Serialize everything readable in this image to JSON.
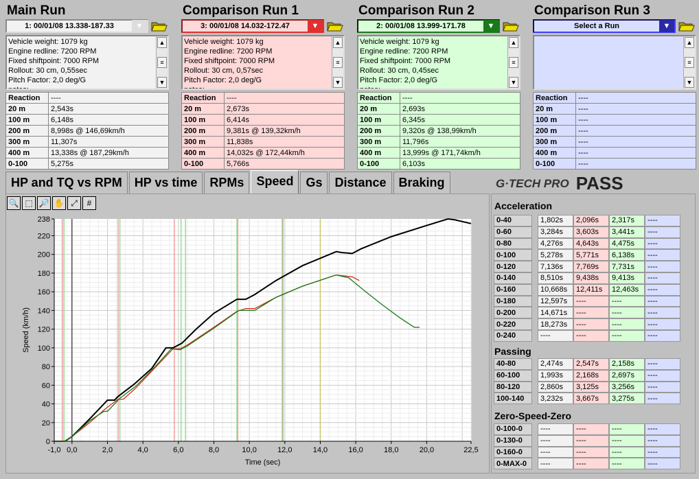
{
  "colors": {
    "main": "#f2f2f2",
    "run1": "#ffd8d8",
    "run2": "#d8ffd8",
    "run3": "#d8deff",
    "run1_accent": "#e03030",
    "run2_accent": "#1a7a1a",
    "run3_accent": "#2a2aa8"
  },
  "runs": [
    {
      "title": "Main Run",
      "selected": "1:   00/01/08 13.338-187.33",
      "info": [
        "Vehicle weight: 1079 kg",
        "Engine redline: 7200 RPM",
        "Fixed shiftpoint: 7000 RPM",
        "Rollout: 30 cm, 0,55sec",
        "Pitch Factor: 2,0 deg/G",
        "notes:"
      ],
      "results": [
        [
          "Reaction",
          "----"
        ],
        [
          "20 m",
          "2,543s"
        ],
        [
          "100 m",
          "6,148s"
        ],
        [
          "200 m",
          "8,998s @ 146,69km/h"
        ],
        [
          "300 m",
          "11,307s"
        ],
        [
          "400 m",
          "13,338s @ 187,29km/h"
        ],
        [
          "0-100",
          "5,275s"
        ]
      ]
    },
    {
      "title": "Comparison Run 1",
      "selected": "3:   00/01/08 14.032-172.47",
      "info": [
        "Vehicle weight: 1079 kg",
        "Engine redline: 7200 RPM",
        "Fixed shiftpoint: 7000 RPM",
        "Rollout: 30 cm, 0,57sec",
        "Pitch Factor: 2,0 deg/G",
        "notes:"
      ],
      "results": [
        [
          "Reaction",
          "----"
        ],
        [
          "20 m",
          "2,673s"
        ],
        [
          "100 m",
          "6,414s"
        ],
        [
          "200 m",
          "9,381s @ 139,32km/h"
        ],
        [
          "300 m",
          "11,838s"
        ],
        [
          "400 m",
          "14,032s @ 172,44km/h"
        ],
        [
          "0-100",
          "5,766s"
        ]
      ]
    },
    {
      "title": "Comparison Run 2",
      "selected": "2:   00/01/08 13.999-171.78",
      "info": [
        "Vehicle weight: 1079 kg",
        "Engine redline: 7200 RPM",
        "Fixed shiftpoint: 7000 RPM",
        "Rollout: 30 cm, 0,45sec",
        "Pitch Factor: 2,0 deg/G",
        "notes:"
      ],
      "results": [
        [
          "Reaction",
          "----"
        ],
        [
          "20 m",
          "2,693s"
        ],
        [
          "100 m",
          "6,345s"
        ],
        [
          "200 m",
          "9,320s @ 138,99km/h"
        ],
        [
          "300 m",
          "11,796s"
        ],
        [
          "400 m",
          "13,999s @ 171,74km/h"
        ],
        [
          "0-100",
          "6,103s"
        ]
      ]
    },
    {
      "title": "Comparison Run 3",
      "selected": "Select a Run",
      "info": [],
      "results": [
        [
          "Reaction",
          "----"
        ],
        [
          "20 m",
          "----"
        ],
        [
          "100 m",
          "----"
        ],
        [
          "200 m",
          "----"
        ],
        [
          "300 m",
          "----"
        ],
        [
          "400 m",
          "----"
        ],
        [
          "0-100",
          "----"
        ]
      ]
    }
  ],
  "tabs": [
    "HP and TQ vs RPM",
    "HP vs time",
    "RPMs",
    "Speed",
    "Gs",
    "Distance",
    "Braking"
  ],
  "active_tab": "Speed",
  "logo": {
    "brand": "GTECH PRO",
    "product": "PASS"
  },
  "tools": [
    {
      "icon": "zoom-in-icon",
      "glyph": "🔍"
    },
    {
      "icon": "zoom-rect-icon",
      "glyph": "⬚"
    },
    {
      "icon": "zoom-out-icon",
      "glyph": "🔎"
    },
    {
      "icon": "pan-hand-icon",
      "glyph": "✋"
    },
    {
      "icon": "fit-icon",
      "glyph": "⤢"
    },
    {
      "icon": "grid-icon",
      "glyph": "#"
    }
  ],
  "acceleration": {
    "title": "Acceleration",
    "rows": [
      [
        "0-40",
        "1,802s",
        "2,096s",
        "2,317s",
        "----"
      ],
      [
        "0-60",
        "3,284s",
        "3,603s",
        "3,441s",
        "----"
      ],
      [
        "0-80",
        "4,276s",
        "4,643s",
        "4,475s",
        "----"
      ],
      [
        "0-100",
        "5,278s",
        "5,771s",
        "6,138s",
        "----"
      ],
      [
        "0-120",
        "7,136s",
        "7,769s",
        "7,731s",
        "----"
      ],
      [
        "0-140",
        "8,510s",
        "9,438s",
        "9,413s",
        "----"
      ],
      [
        "0-160",
        "10,668s",
        "12,411s",
        "12,463s",
        "----"
      ],
      [
        "0-180",
        "12,597s",
        "----",
        "----",
        "----"
      ],
      [
        "0-200",
        "14,671s",
        "----",
        "----",
        "----"
      ],
      [
        "0-220",
        "18,273s",
        "----",
        "----",
        "----"
      ],
      [
        "0-240",
        "----",
        "----",
        "----",
        "----"
      ]
    ]
  },
  "passing": {
    "title": "Passing",
    "rows": [
      [
        "40-80",
        "2,474s",
        "2,547s",
        "2,158s",
        "----"
      ],
      [
        "60-100",
        "1,993s",
        "2,168s",
        "2,697s",
        "----"
      ],
      [
        "80-120",
        "2,860s",
        "3,125s",
        "3,256s",
        "----"
      ],
      [
        "100-140",
        "3,232s",
        "3,667s",
        "3,275s",
        "----"
      ]
    ]
  },
  "zsz": {
    "title": "Zero-Speed-Zero",
    "rows": [
      [
        "0-100-0",
        "----",
        "----",
        "----",
        "----"
      ],
      [
        "0-130-0",
        "----",
        "----",
        "----",
        "----"
      ],
      [
        "0-160-0",
        "----",
        "----",
        "----",
        "----"
      ],
      [
        "0-MAX-0",
        "----",
        "----",
        "----",
        "----"
      ]
    ]
  },
  "chart_data": {
    "type": "line",
    "xlabel": "Time (sec)",
    "ylabel": "Speed (km/h)",
    "xlim": [
      -1,
      22.5
    ],
    "ylim": [
      0,
      238
    ],
    "grid": true,
    "xticks": [
      "-1,0",
      "0,0",
      "2,0",
      "4,0",
      "6,0",
      "8,0",
      "10,0",
      "12,0",
      "14,0",
      "16,0",
      "18,0",
      "20,0",
      "22,5"
    ],
    "xtick_values": [
      -1,
      0,
      2,
      4,
      6,
      8,
      10,
      12,
      14,
      16,
      18,
      20,
      22.5
    ],
    "yticks": [
      0,
      20,
      40,
      60,
      80,
      100,
      120,
      140,
      160,
      180,
      200,
      220,
      238
    ],
    "series": [
      {
        "color": "#000000",
        "points": [
          [
            -1,
            0
          ],
          [
            -0.4,
            0
          ],
          [
            0,
            5
          ],
          [
            1,
            24
          ],
          [
            1.7,
            38
          ],
          [
            2,
            44
          ],
          [
            2.4,
            44
          ],
          [
            2.6,
            48
          ],
          [
            3.5,
            61
          ],
          [
            4.5,
            78
          ],
          [
            5.3,
            100
          ],
          [
            5.7,
            100
          ],
          [
            6.2,
            105
          ],
          [
            7,
            120
          ],
          [
            8,
            137
          ],
          [
            9.3,
            152
          ],
          [
            9.8,
            152
          ],
          [
            10.3,
            157
          ],
          [
            11.5,
            172
          ],
          [
            13,
            188
          ],
          [
            14.9,
            203
          ],
          [
            15.2,
            202
          ],
          [
            15.8,
            201
          ],
          [
            16.3,
            206
          ],
          [
            18,
            219
          ],
          [
            20,
            231
          ],
          [
            21.2,
            238
          ],
          [
            21.6,
            237
          ],
          [
            22.5,
            233
          ]
        ]
      },
      {
        "color": "#d03020",
        "points": [
          [
            -1,
            0
          ],
          [
            -0.4,
            0
          ],
          [
            0,
            5
          ],
          [
            1,
            20
          ],
          [
            1.9,
            35
          ],
          [
            2.6,
            45
          ],
          [
            2.9,
            45
          ],
          [
            3.6,
            57
          ],
          [
            4.7,
            79
          ],
          [
            5.7,
            99
          ],
          [
            6.1,
            99
          ],
          [
            6.5,
            103
          ],
          [
            8,
            122
          ],
          [
            9.3,
            139
          ],
          [
            9.8,
            142
          ],
          [
            10.3,
            142
          ],
          [
            11.5,
            154
          ],
          [
            13,
            166
          ],
          [
            14.9,
            178
          ],
          [
            15.8,
            176
          ],
          [
            16.2,
            172
          ]
        ]
      },
      {
        "color": "#1a7a1a",
        "points": [
          [
            -1,
            0
          ],
          [
            -0.4,
            0
          ],
          [
            0,
            5
          ],
          [
            1,
            22
          ],
          [
            1.8,
            32
          ],
          [
            2,
            32
          ],
          [
            2.7,
            46
          ],
          [
            3.6,
            59
          ],
          [
            4.6,
            78
          ],
          [
            5.6,
            99
          ],
          [
            6.1,
            98
          ],
          [
            6.5,
            102
          ],
          [
            8,
            121
          ],
          [
            9.4,
            140
          ],
          [
            9.8,
            140
          ],
          [
            10.3,
            140
          ],
          [
            11.5,
            154
          ],
          [
            13,
            166
          ],
          [
            14.9,
            178
          ],
          [
            15.6,
            175
          ],
          [
            16.5,
            161
          ],
          [
            17.5,
            146
          ],
          [
            18.5,
            132
          ],
          [
            19.3,
            122
          ],
          [
            19.6,
            122
          ]
        ]
      }
    ],
    "markers": [
      {
        "color": "#f0a0a0",
        "x": [
          -0.55,
          2.6,
          5.77,
          9.35,
          11.9
        ]
      },
      {
        "color": "#90e090",
        "x": [
          -0.45,
          2.7,
          6.15,
          6.4,
          9.3,
          11.85
        ]
      },
      {
        "color": "#c8c870",
        "x": [
          14.0
        ]
      }
    ]
  }
}
